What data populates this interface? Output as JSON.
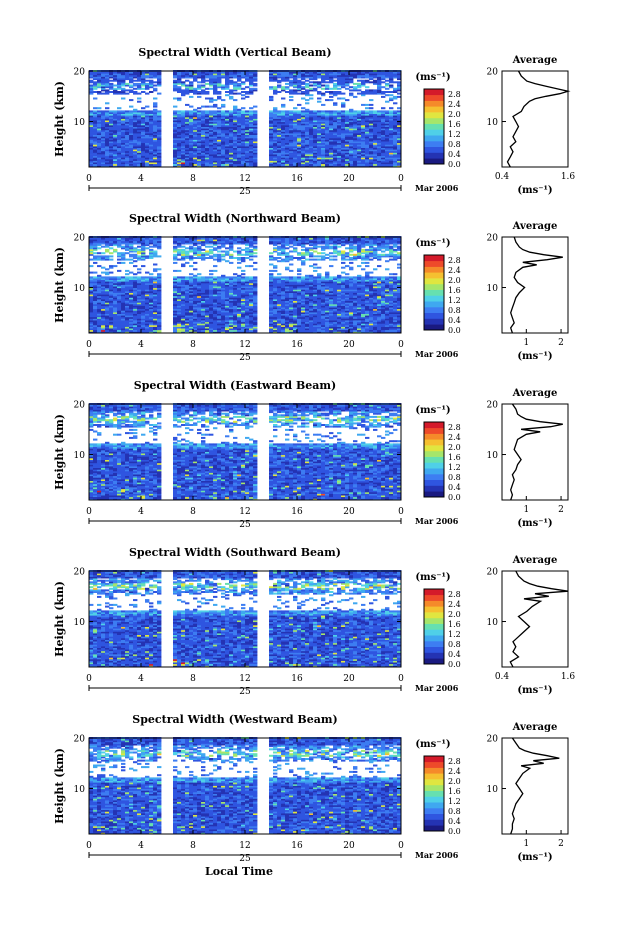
{
  "figure": {
    "colorbar_unit": "(ms⁻¹)",
    "colorbar_ticks": [
      "0.0",
      "0.4",
      "0.8",
      "1.2",
      "1.6",
      "2.0",
      "2.4",
      "2.8"
    ],
    "colorbar_range": [
      0,
      3.0
    ],
    "colorbar_colors": [
      "#1a1a80",
      "#2433b3",
      "#2f55e0",
      "#3d7df2",
      "#3fa8f0",
      "#4fd0e8",
      "#66e0b0",
      "#a6e66a",
      "#e0e640",
      "#f5c030",
      "#f58a2a",
      "#ee4a2a",
      "#d41a2a"
    ],
    "date_label": "Mar 2006",
    "day_label": "25",
    "time_ticks": [
      "0",
      "4",
      "8",
      "12",
      "16",
      "20",
      "0"
    ],
    "height_ticks": [
      "20",
      "10"
    ],
    "ylabel": "Height (km)",
    "xlabel": "Local Time",
    "average_title": "Average",
    "average_unit": "(ms⁻¹)",
    "gaps_hours": [
      [
        5.8,
        6.2
      ],
      [
        13.0,
        13.8
      ]
    ]
  },
  "chart_data": [
    {
      "type": "heatmap",
      "title": "Spectral Width (Vertical Beam)",
      "xlabel": "",
      "ylabel": "Height (km)",
      "xlim": [
        0,
        24
      ],
      "ylim": [
        1,
        20
      ],
      "z_unit": "ms⁻¹",
      "z_range": [
        0,
        3.0
      ],
      "average": {
        "title": "Average",
        "xticks": [
          "0.4",
          "1.6"
        ],
        "xlim": [
          0.4,
          1.6
        ],
        "profile": {
          "height": [
            1,
            2,
            3,
            4,
            5,
            6,
            7,
            8,
            9,
            10,
            11,
            12,
            13,
            14,
            14.5,
            15,
            15.5,
            16,
            16.5,
            17,
            17.5,
            18,
            19,
            20
          ],
          "value": [
            0.55,
            0.5,
            0.55,
            0.6,
            0.55,
            0.65,
            0.6,
            0.65,
            0.7,
            0.65,
            0.6,
            0.75,
            0.8,
            0.9,
            1.0,
            1.2,
            1.45,
            1.6,
            1.4,
            1.2,
            1.0,
            0.85,
            0.75,
            0.7
          ]
        }
      }
    },
    {
      "type": "heatmap",
      "title": "Spectral Width (Northward Beam)",
      "xlabel": "",
      "ylabel": "Height (km)",
      "xlim": [
        0,
        24
      ],
      "ylim": [
        1,
        20
      ],
      "z_unit": "ms⁻¹",
      "z_range": [
        0,
        3.0
      ],
      "average": {
        "title": "Average",
        "xticks": [
          "1",
          "2"
        ],
        "xlim": [
          0.3,
          2.2
        ],
        "profile": {
          "height": [
            1,
            2,
            3,
            4,
            5,
            6,
            7,
            8,
            9,
            10,
            11,
            12,
            13,
            14,
            14.5,
            15,
            15.5,
            16,
            16.5,
            17,
            17.5,
            18,
            19,
            20
          ],
          "value": [
            0.6,
            0.55,
            0.65,
            0.6,
            0.55,
            0.6,
            0.65,
            0.7,
            0.8,
            0.95,
            0.75,
            0.65,
            0.7,
            0.9,
            1.3,
            0.9,
            1.6,
            2.05,
            1.5,
            1.1,
            0.9,
            0.8,
            0.7,
            0.65
          ]
        }
      }
    },
    {
      "type": "heatmap",
      "title": "Spectral Width (Eastward Beam)",
      "xlabel": "",
      "ylabel": "Height (km)",
      "xlim": [
        0,
        24
      ],
      "ylim": [
        1,
        20
      ],
      "z_unit": "ms⁻¹",
      "z_range": [
        0,
        3.0
      ],
      "average": {
        "title": "Average",
        "xticks": [
          "1",
          "2"
        ],
        "xlim": [
          0.3,
          2.2
        ],
        "profile": {
          "height": [
            1,
            2,
            3,
            4,
            5,
            6,
            7,
            8,
            9,
            10,
            11,
            12,
            13,
            14,
            14.5,
            15,
            15.5,
            16,
            16.5,
            17,
            17.5,
            18,
            19,
            20
          ],
          "value": [
            0.55,
            0.6,
            0.55,
            0.6,
            0.65,
            0.6,
            0.7,
            0.75,
            0.85,
            0.75,
            0.65,
            0.7,
            0.75,
            1.0,
            1.4,
            0.85,
            1.7,
            2.05,
            1.4,
            1.0,
            0.85,
            0.75,
            0.7,
            0.6
          ]
        }
      }
    },
    {
      "type": "heatmap",
      "title": "Spectral Width (Southward Beam)",
      "xlabel": "",
      "ylabel": "Height (km)",
      "xlim": [
        0,
        24
      ],
      "ylim": [
        1,
        20
      ],
      "z_unit": "ms⁻¹",
      "z_range": [
        0,
        3.0
      ],
      "average": {
        "title": "Average",
        "xticks": [
          "0.4",
          "1.6"
        ],
        "xlim": [
          0.4,
          1.6
        ],
        "profile": {
          "height": [
            1,
            2,
            3,
            4,
            5,
            6,
            7,
            8,
            9,
            10,
            11,
            12,
            13,
            14,
            14.5,
            15,
            15.5,
            16,
            16.5,
            17,
            17.5,
            18,
            19,
            20
          ],
          "value": [
            0.6,
            0.55,
            0.7,
            0.6,
            0.65,
            0.6,
            0.7,
            0.8,
            0.9,
            0.8,
            0.7,
            0.85,
            0.95,
            1.1,
            0.8,
            1.25,
            1.0,
            1.6,
            1.3,
            1.05,
            0.9,
            0.8,
            0.7,
            0.65
          ]
        }
      }
    },
    {
      "type": "heatmap",
      "title": "Spectral Width (Westward Beam)",
      "xlabel": "Local Time",
      "ylabel": "Height (km)",
      "xlim": [
        0,
        24
      ],
      "ylim": [
        1,
        20
      ],
      "z_unit": "ms⁻¹",
      "z_range": [
        0,
        3.0
      ],
      "average": {
        "title": "Average",
        "xticks": [
          "1",
          "2"
        ],
        "xlim": [
          0.3,
          2.2
        ],
        "profile": {
          "height": [
            1,
            2,
            3,
            4,
            5,
            6,
            7,
            8,
            9,
            10,
            11,
            12,
            13,
            14,
            14.5,
            15,
            15.5,
            16,
            16.5,
            17,
            17.5,
            18,
            19,
            20
          ],
          "value": [
            0.55,
            0.6,
            0.6,
            0.65,
            0.6,
            0.65,
            0.7,
            0.8,
            0.9,
            0.8,
            0.7,
            0.8,
            0.9,
            1.1,
            0.85,
            1.5,
            1.2,
            1.95,
            1.6,
            1.2,
            0.95,
            0.8,
            0.7,
            0.6
          ]
        }
      }
    }
  ]
}
